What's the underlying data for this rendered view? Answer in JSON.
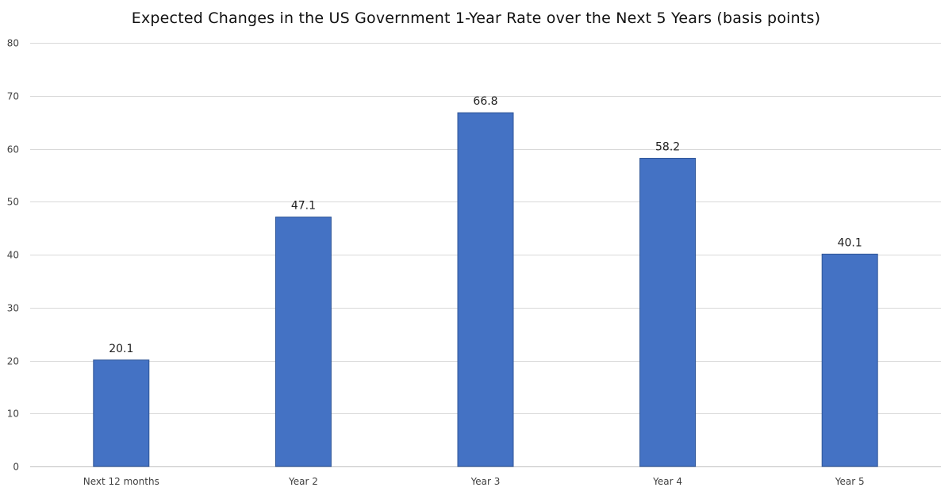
{
  "chart_data": {
    "type": "bar",
    "title": "Expected Changes in the US Government 1-Year Rate over the Next 5 Years (basis points)",
    "categories": [
      "Next 12 months",
      "Year 2",
      "Year 3",
      "Year 4",
      "Year 5"
    ],
    "values": [
      20.1,
      47.1,
      66.8,
      58.2,
      40.1
    ],
    "data_labels": [
      "20.1",
      "47.1",
      "66.8",
      "58.2",
      "40.1"
    ],
    "xlabel": "",
    "ylabel": "",
    "ylim": [
      0,
      80
    ],
    "yticks": [
      0,
      10,
      20,
      30,
      40,
      50,
      60,
      70,
      80
    ],
    "grid": true,
    "legend": "none",
    "bar_color": "#4472C4",
    "bar_edge_color": "#2F5597"
  }
}
